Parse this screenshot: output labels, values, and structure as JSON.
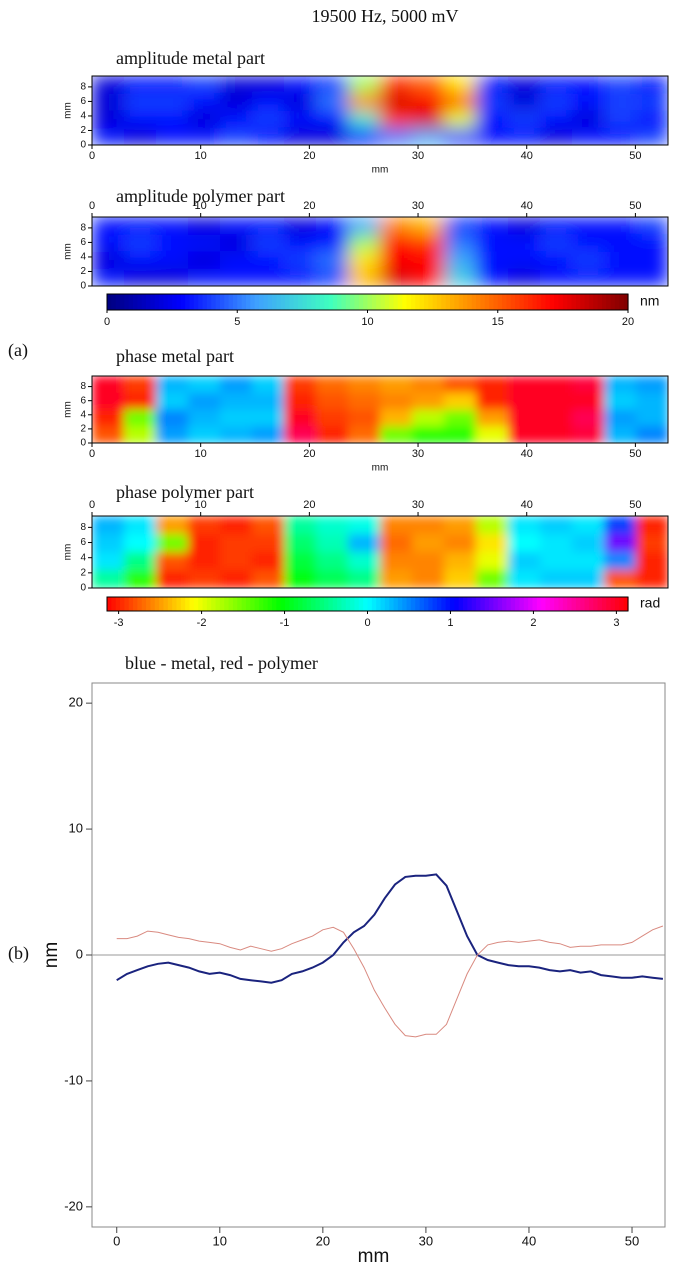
{
  "title": "19500 Hz, 5000 mV",
  "panel_labels": [
    "(a)",
    "(b)"
  ],
  "chart_data": [
    {
      "type": "heatmap",
      "title": "amplitude metal part",
      "xlim": [
        0,
        53
      ],
      "xticks": [
        0,
        10,
        20,
        30,
        40,
        50
      ],
      "ylim": [
        0,
        9.5
      ],
      "yticks": [
        0,
        2,
        4,
        6,
        8
      ],
      "xlabel": "mm",
      "ylabel": "mm",
      "xaxis": "bottom",
      "z": [
        [
          2,
          3,
          3,
          4,
          2,
          2,
          3,
          4,
          10,
          16,
          15,
          12,
          3,
          2,
          3,
          3,
          4,
          3
        ],
        [
          2,
          4,
          4,
          3,
          2,
          3,
          2,
          5,
          14,
          18,
          17,
          15,
          4,
          2,
          4,
          3,
          4,
          4
        ],
        [
          2,
          3,
          3,
          2,
          3,
          4,
          3,
          3,
          8,
          16,
          18,
          11,
          3,
          4,
          3,
          2,
          4,
          3
        ],
        [
          3,
          2,
          3,
          3,
          4,
          3,
          2,
          2,
          3,
          5,
          6,
          4,
          3,
          3,
          2,
          3,
          3,
          4
        ]
      ]
    },
    {
      "type": "heatmap",
      "title": "amplitude polymer part",
      "xlim": [
        0,
        53
      ],
      "xticks": [
        0,
        10,
        20,
        30,
        40,
        50
      ],
      "ylim": [
        0,
        9.5
      ],
      "yticks": [
        0,
        2,
        4,
        6,
        8
      ],
      "ylabel": "mm",
      "xaxis": "top",
      "z": [
        [
          3,
          3,
          3,
          2,
          3,
          3,
          2,
          3,
          6,
          14,
          13,
          4,
          3,
          2,
          3,
          3,
          3,
          4
        ],
        [
          3,
          4,
          3,
          3,
          2,
          4,
          3,
          3,
          10,
          17,
          16,
          5,
          3,
          3,
          4,
          3,
          3,
          3
        ],
        [
          2,
          3,
          3,
          2,
          3,
          3,
          4,
          5,
          12,
          17,
          17,
          6,
          3,
          3,
          3,
          4,
          3,
          3
        ],
        [
          3,
          2,
          2,
          3,
          3,
          3,
          3,
          4,
          13,
          18,
          17,
          7,
          3,
          2,
          3,
          3,
          3,
          3
        ]
      ]
    },
    {
      "type": "colorbar",
      "lim": [
        0,
        20
      ],
      "ticks": [
        0,
        5,
        10,
        15,
        20
      ],
      "unit": "nm",
      "colormap": [
        "#00007f",
        "#0000ff",
        "#3fa0ff",
        "#3fffbf",
        "#ffff00",
        "#ff7f00",
        "#ff0000",
        "#7f0000"
      ]
    },
    {
      "type": "heatmap",
      "title": "phase metal part",
      "xlim": [
        0,
        53
      ],
      "xticks": [
        0,
        10,
        20,
        30,
        40,
        50
      ],
      "ylim": [
        0,
        9.5
      ],
      "yticks": [
        0,
        2,
        4,
        6,
        8
      ],
      "xlabel": "mm",
      "ylabel": "mm",
      "xaxis": "bottom",
      "z": [
        [
          3,
          -2.9,
          0.3,
          0.2,
          0.4,
          0.2,
          -2.9,
          -2.7,
          -2.6,
          -2.5,
          -2.6,
          -2.8,
          -3,
          3,
          3,
          2.9,
          0.3,
          0.4
        ],
        [
          3,
          -3,
          0.2,
          0.4,
          0.3,
          0.3,
          -3,
          -2.8,
          -2.7,
          -2.6,
          -2.5,
          -2.3,
          -3,
          3,
          3,
          3,
          0.2,
          0.3
        ],
        [
          -3,
          -1.5,
          0.5,
          0.3,
          0.2,
          0.2,
          3,
          -2.9,
          -2.8,
          -2.4,
          -1.8,
          -1.5,
          -2.5,
          3,
          3,
          2.8,
          0.4,
          0.3
        ],
        [
          -2.8,
          -1.8,
          0.4,
          0.2,
          0.3,
          0.4,
          2.8,
          -3,
          -2.7,
          -1.5,
          -1.2,
          -1.2,
          -2,
          3,
          3,
          2.9,
          0.3,
          0.5
        ]
      ]
    },
    {
      "type": "heatmap",
      "title": "phase polymer part",
      "xlim": [
        0,
        53
      ],
      "xticks": [
        0,
        10,
        20,
        30,
        40,
        50
      ],
      "ylim": [
        0,
        9.5
      ],
      "yticks": [
        0,
        2,
        4,
        6,
        8
      ],
      "ylabel": "mm",
      "xaxis": "top",
      "z": [
        [
          0.3,
          0.1,
          -2.5,
          -2.9,
          -3,
          -2.8,
          -0.4,
          -0.2,
          -0.1,
          -2.6,
          -2.6,
          -2.5,
          -1.8,
          0.1,
          0.2,
          0.1,
          0.8,
          -3
        ],
        [
          0.2,
          0,
          -1.5,
          -3,
          -2.9,
          -2.9,
          -0.6,
          -0.3,
          0.3,
          -2.7,
          -2.5,
          -2.6,
          -2.2,
          0,
          0.1,
          0.2,
          1.5,
          -2.9
        ],
        [
          0.1,
          -0.5,
          -2.8,
          -3,
          -2.9,
          -3,
          -0.8,
          -0.5,
          -0.2,
          -2.6,
          -2.6,
          -2.4,
          -2,
          0.2,
          0.1,
          0.1,
          0.5,
          -3
        ],
        [
          -0.4,
          -1.2,
          -3,
          -2.9,
          -3,
          -2.8,
          -1,
          -0.7,
          -0.5,
          -2.5,
          -2.6,
          -2.3,
          -1.5,
          0.1,
          0.2,
          0.2,
          -2.8,
          -3
        ]
      ]
    },
    {
      "type": "colorbar",
      "lim": [
        -3.14,
        3.14
      ],
      "ticks": [
        -3,
        -2,
        -1,
        0,
        1,
        2,
        3
      ],
      "unit": "rad",
      "colormap": [
        "#ff0000",
        "#ffff00",
        "#00ff00",
        "#00ffff",
        "#0000ff",
        "#ff00ff",
        "#ff0000"
      ]
    },
    {
      "type": "line",
      "title": "blue - metal, red - polymer",
      "xlabel": "mm",
      "ylabel": "nm",
      "xlim": [
        -2.4,
        53.2
      ],
      "xticks": [
        0,
        10,
        20,
        30,
        40,
        50
      ],
      "ylim": [
        -21.6,
        21.6
      ],
      "yticks": [
        -20,
        -10,
        0,
        10,
        20
      ],
      "hline": 0,
      "x": [
        0,
        1,
        2,
        3,
        4,
        5,
        6,
        7,
        8,
        9,
        10,
        11,
        12,
        13,
        14,
        15,
        16,
        17,
        18,
        19,
        20,
        21,
        22,
        23,
        24,
        25,
        26,
        27,
        28,
        29,
        30,
        31,
        32,
        33,
        34,
        35,
        36,
        37,
        38,
        39,
        40,
        41,
        42,
        43,
        44,
        45,
        46,
        47,
        48,
        49,
        50,
        51,
        52,
        53
      ],
      "series": [
        {
          "name": "metal",
          "color": "#1a237e",
          "width": 2,
          "values": [
            -2,
            -1.5,
            -1.2,
            -0.9,
            -0.7,
            -0.6,
            -0.8,
            -1.0,
            -1.3,
            -1.5,
            -1.4,
            -1.6,
            -1.9,
            -2.0,
            -2.1,
            -2.2,
            -2.0,
            -1.5,
            -1.3,
            -1.0,
            -0.6,
            0,
            1,
            1.8,
            2.3,
            3.2,
            4.5,
            5.6,
            6.2,
            6.3,
            6.3,
            6.4,
            5.5,
            3.5,
            1.5,
            0,
            -0.4,
            -0.6,
            -0.8,
            -0.9,
            -0.9,
            -1.0,
            -1.2,
            -1.3,
            -1.2,
            -1.4,
            -1.3,
            -1.6,
            -1.7,
            -1.8,
            -1.8,
            -1.7,
            -1.8,
            -1.9
          ]
        },
        {
          "name": "polymer",
          "color": "#d98a80",
          "width": 1,
          "values": [
            1.3,
            1.3,
            1.5,
            1.9,
            1.8,
            1.6,
            1.4,
            1.3,
            1.1,
            1.0,
            0.9,
            0.6,
            0.4,
            0.7,
            0.5,
            0.3,
            0.5,
            0.9,
            1.2,
            1.5,
            2.0,
            2.2,
            1.8,
            0.5,
            -1,
            -2.8,
            -4.2,
            -5.5,
            -6.4,
            -6.5,
            -6.3,
            -6.3,
            -5.5,
            -3.5,
            -1.5,
            0,
            0.8,
            1.0,
            1.1,
            1.0,
            1.1,
            1.2,
            1.0,
            0.9,
            0.6,
            0.7,
            0.7,
            0.8,
            0.8,
            0.8,
            1.0,
            1.5,
            2.0,
            2.3
          ]
        }
      ]
    }
  ]
}
